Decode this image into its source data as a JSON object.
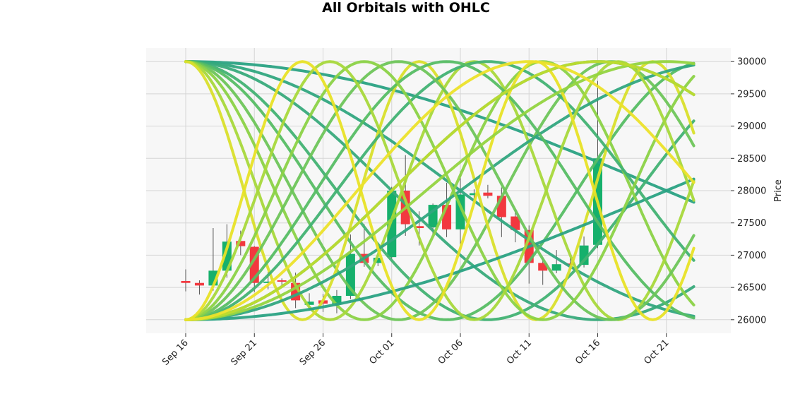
{
  "chart_data": {
    "type": "candlestick",
    "title": "All Orbitals with OHLC",
    "ylabel": "Price",
    "xlabel": "",
    "ylim": [
      25790,
      30210
    ],
    "yticks": [
      26000,
      26500,
      27000,
      27500,
      28000,
      28500,
      29000,
      29500,
      30000
    ],
    "ytick_labels": [
      "26000",
      "26500",
      "27000",
      "27500",
      "28000",
      "28500",
      "29000",
      "29500",
      "30000"
    ],
    "xticks": [
      {
        "day": 0,
        "label": "Sep 16"
      },
      {
        "day": 5,
        "label": "Sep 21"
      },
      {
        "day": 10,
        "label": "Sep 26"
      },
      {
        "day": 15,
        "label": "Oct 01"
      },
      {
        "day": 20,
        "label": "Oct 06"
      },
      {
        "day": 25,
        "label": "Oct 11"
      },
      {
        "day": 30,
        "label": "Oct 16"
      },
      {
        "day": 35,
        "label": "Oct 21"
      }
    ],
    "x_first_date": "Sep 16",
    "grid": true,
    "ohlc": [
      {
        "date": "Sep 16",
        "open": 26600,
        "high": 26780,
        "low": 26440,
        "close": 26570
      },
      {
        "date": "Sep 17",
        "open": 26570,
        "high": 26610,
        "low": 26390,
        "close": 26530
      },
      {
        "date": "Sep 18",
        "open": 26530,
        "high": 27420,
        "low": 26450,
        "close": 26760
      },
      {
        "date": "Sep 19",
        "open": 26760,
        "high": 27480,
        "low": 26650,
        "close": 27210
      },
      {
        "date": "Sep 20",
        "open": 27220,
        "high": 27380,
        "low": 27000,
        "close": 27140
      },
      {
        "date": "Sep 21",
        "open": 27130,
        "high": 27140,
        "low": 26430,
        "close": 26570
      },
      {
        "date": "Sep 22",
        "open": 26570,
        "high": 26740,
        "low": 26470,
        "close": 26580
      },
      {
        "date": "Sep 23",
        "open": 26600,
        "high": 26640,
        "low": 26540,
        "close": 26580
      },
      {
        "date": "Sep 24",
        "open": 26570,
        "high": 26730,
        "low": 26180,
        "close": 26300
      },
      {
        "date": "Sep 25",
        "open": 26230,
        "high": 26410,
        "low": 26140,
        "close": 26280
      },
      {
        "date": "Sep 26",
        "open": 26300,
        "high": 26400,
        "low": 26120,
        "close": 26250
      },
      {
        "date": "Sep 27",
        "open": 26240,
        "high": 26460,
        "low": 26100,
        "close": 26370
      },
      {
        "date": "Sep 28",
        "open": 26370,
        "high": 27320,
        "low": 26320,
        "close": 27020
      },
      {
        "date": "Sep 29",
        "open": 27020,
        "high": 27480,
        "low": 26820,
        "close": 26880
      },
      {
        "date": "Sep 30",
        "open": 26880,
        "high": 27090,
        "low": 26830,
        "close": 26960
      },
      {
        "date": "Oct 01",
        "open": 26970,
        "high": 28060,
        "low": 26950,
        "close": 28000
      },
      {
        "date": "Oct 02",
        "open": 28000,
        "high": 28550,
        "low": 27300,
        "close": 27480
      },
      {
        "date": "Oct 03",
        "open": 27450,
        "high": 27680,
        "low": 27150,
        "close": 27420
      },
      {
        "date": "Oct 04",
        "open": 27430,
        "high": 27800,
        "low": 27330,
        "close": 27780
      },
      {
        "date": "Oct 05",
        "open": 27780,
        "high": 28120,
        "low": 27280,
        "close": 27400
      },
      {
        "date": "Oct 06",
        "open": 27400,
        "high": 28300,
        "low": 27150,
        "close": 27940
      },
      {
        "date": "Oct 07",
        "open": 27930,
        "high": 28020,
        "low": 27830,
        "close": 27960
      },
      {
        "date": "Oct 08",
        "open": 27970,
        "high": 28090,
        "low": 27880,
        "close": 27920
      },
      {
        "date": "Oct 09",
        "open": 27920,
        "high": 28050,
        "low": 27280,
        "close": 27590
      },
      {
        "date": "Oct 10",
        "open": 27600,
        "high": 27700,
        "low": 27200,
        "close": 27390
      },
      {
        "date": "Oct 11",
        "open": 27390,
        "high": 27460,
        "low": 26560,
        "close": 26880
      },
      {
        "date": "Oct 12",
        "open": 26880,
        "high": 26960,
        "low": 26540,
        "close": 26760
      },
      {
        "date": "Oct 13",
        "open": 26760,
        "high": 27080,
        "low": 26720,
        "close": 26860
      },
      {
        "date": "Oct 14",
        "open": 26860,
        "high": 26960,
        "low": 26780,
        "close": 26850
      },
      {
        "date": "Oct 15",
        "open": 26850,
        "high": 27290,
        "low": 26810,
        "close": 27150
      },
      {
        "date": "Oct 16",
        "open": 27160,
        "high": 29700,
        "low": 27110,
        "close": 28500
      }
    ],
    "up_color": "#16b06c",
    "down_color": "#f2383f",
    "orbital_low": 26000,
    "orbital_high": 30000,
    "orbital_palette": [
      "#2aa283",
      "#3cb372",
      "#62c35a",
      "#93d440",
      "#bfdc2e",
      "#ece22a"
    ],
    "orbital_curves": [
      {
        "start": 30000,
        "period": 140,
        "phase": 0,
        "color": "#2aa283"
      },
      {
        "start": 30000,
        "period": 80,
        "phase": 0,
        "color": "#31a67f"
      },
      {
        "start": 30000,
        "period": 60,
        "phase": 0,
        "color": "#38aa7b"
      },
      {
        "start": 30000,
        "period": 44,
        "phase": 0,
        "color": "#42b273"
      },
      {
        "start": 30000,
        "period": 38,
        "phase": 0,
        "color": "#56bd64"
      },
      {
        "start": 30000,
        "period": 31,
        "phase": 0,
        "color": "#6ec55a"
      },
      {
        "start": 30000,
        "period": 26,
        "phase": 0,
        "color": "#8bd246"
      },
      {
        "start": 30000,
        "period": 21,
        "phase": 0,
        "color": "#a8d83b"
      },
      {
        "start": 30000,
        "period": 17,
        "phase": 0,
        "color": "#d9df2b"
      },
      {
        "start": 26000,
        "period": 140,
        "phase": 0,
        "color": "#2aa283"
      },
      {
        "start": 26000,
        "period": 80,
        "phase": 0,
        "color": "#31a67f"
      },
      {
        "start": 26000,
        "period": 60,
        "phase": 0,
        "color": "#38aa7b"
      },
      {
        "start": 26000,
        "period": 44,
        "phase": 0,
        "color": "#42b273"
      },
      {
        "start": 26000,
        "period": 38,
        "phase": 0,
        "color": "#56bd64"
      },
      {
        "start": 26000,
        "period": 31,
        "phase": 0,
        "color": "#6ec55a"
      },
      {
        "start": 26000,
        "period": 26,
        "phase": 0,
        "color": "#8bd246"
      },
      {
        "start": 26000,
        "period": 21,
        "phase": 0,
        "color": "#a8d83b"
      },
      {
        "start": 26000,
        "period": 17,
        "phase": 0,
        "color": "#e8e226"
      },
      {
        "start": 26000,
        "period": 70,
        "phase": 0,
        "color": "#93d440"
      },
      {
        "start": 26000,
        "period": 60,
        "phase": 0,
        "color": "#bfdc2e"
      },
      {
        "start": 26000,
        "period": 50,
        "phase": 0,
        "color": "#ece22a"
      }
    ]
  }
}
